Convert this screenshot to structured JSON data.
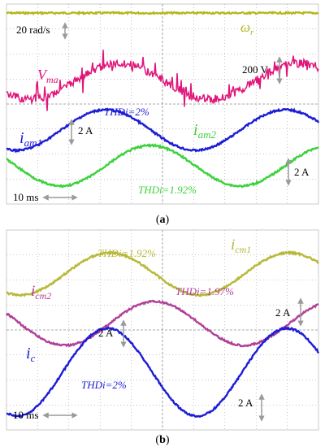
{
  "colors": {
    "speed": "#b5b51a",
    "voltage": "#e0157a",
    "i_am1": "#1c1cd6",
    "i_am2": "#3cd23c",
    "i_cm1": "#b8b838",
    "i_cm2": "#b13f98",
    "i_c": "#1c1cd6",
    "grid": "#8c8c8c",
    "arrow": "#9a9a9a"
  },
  "panel_a": {
    "caption_open": "(",
    "caption_letter": "a",
    "caption_close": ")",
    "label_wr_main": "ω",
    "label_wr_sub": "r",
    "label_vma_main": "V",
    "label_vma_sub": "ma",
    "label_iam1_main": "i",
    "label_iam1_sub": "am1",
    "label_iam2_main": "i",
    "label_iam2_sub": "am2",
    "scale_speed": "20 rad/s",
    "scale_voltage": "200 V",
    "scale_current_1": "2 A",
    "scale_current_2": "2 A",
    "time_scale": "10 ms",
    "thd_1": {
      "name": "THDi",
      "value": "=2%"
    },
    "thd_2": {
      "name": "THDi",
      "value": "=1.92%"
    }
  },
  "panel_b": {
    "caption_open": "(",
    "caption_letter": "b",
    "caption_close": ")",
    "label_icm1_main": "i",
    "label_icm1_sub": "cm1",
    "label_icm2_main": "i",
    "label_icm2_sub": "cm2",
    "label_ic_main": "i",
    "label_ic_sub": "c",
    "scale_current_1": "2 A",
    "scale_current_2": "2 A",
    "scale_current_3": "2 A",
    "time_scale": "10 ms",
    "thd_1": {
      "name": "THDi",
      "value": "=1.92%"
    },
    "thd_2": {
      "name": "THDi",
      "value": "=1.97%"
    },
    "thd_3": {
      "name": "THDi",
      "value": "=2%"
    }
  },
  "chart_data": [
    {
      "type": "line",
      "title": "(a)",
      "series": [
        {
          "name": "ωr",
          "shape": "constant"
        },
        {
          "name": "Vma",
          "shape": "noisy sinusoid"
        },
        {
          "name": "iam1",
          "shape": "sinusoid",
          "thd": "2%"
        },
        {
          "name": "iam2",
          "shape": "sinusoid",
          "thd": "1.92%"
        }
      ],
      "grid": true
    },
    {
      "type": "line",
      "title": "(b)",
      "series": [
        {
          "name": "icm1",
          "shape": "sinusoid",
          "thd": "1.92%"
        },
        {
          "name": "icm2",
          "shape": "sinusoid",
          "thd": "1.97%"
        },
        {
          "name": "ic",
          "shape": "sinusoid",
          "thd": "2%"
        }
      ],
      "grid": true
    }
  ]
}
